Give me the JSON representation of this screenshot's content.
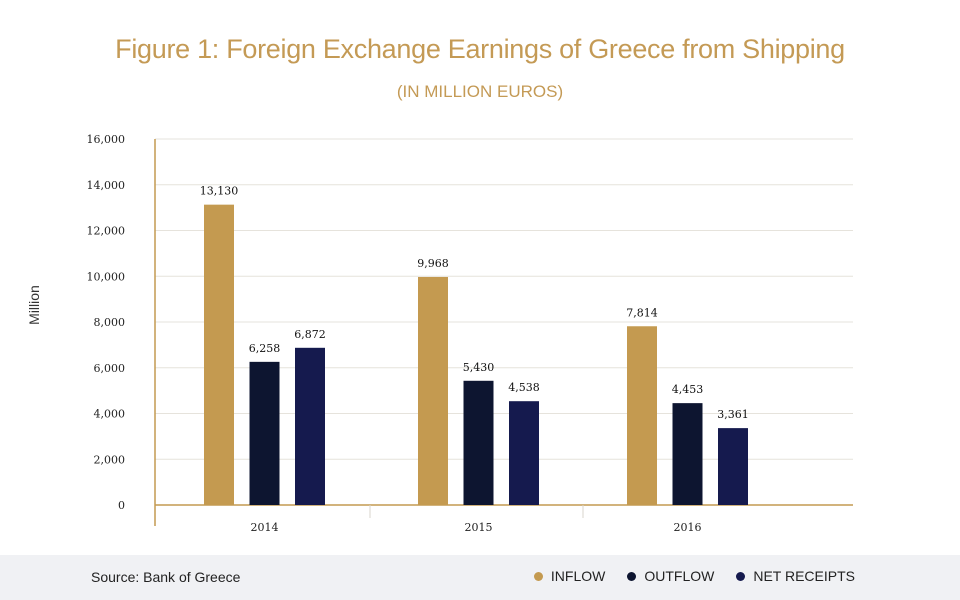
{
  "chart_data": {
    "type": "bar",
    "title": "Figure 1: Foreign Exchange Earnings of Greece from Shipping",
    "subtitle": "(IN MILLION EUROS)",
    "ylabel": "Million",
    "xlabel": "",
    "categories": [
      "2014",
      "2015",
      "2016"
    ],
    "ylim": [
      0,
      16000
    ],
    "yticks": [
      0,
      2000,
      4000,
      6000,
      8000,
      10000,
      12000,
      14000,
      16000
    ],
    "ytick_labels": [
      "0",
      "2,000",
      "4,000",
      "6,000",
      "8,000",
      "10,000",
      "12,000",
      "14,000",
      "16,000"
    ],
    "grid": true,
    "legend_position": "bottom-right",
    "series": [
      {
        "name": "INFLOW",
        "color": "#c49a50",
        "values": [
          13130,
          9968,
          7814
        ],
        "labels": [
          "13,130",
          "9,968",
          "7,814"
        ]
      },
      {
        "name": "OUTFLOW",
        "color": "#0d1530",
        "values": [
          6258,
          5430,
          4453
        ],
        "labels": [
          "6,258",
          "5,430",
          "4,453"
        ]
      },
      {
        "name": "NET RECEIPTS",
        "color": "#151a4e",
        "values": [
          6872,
          4538,
          3361
        ],
        "labels": [
          "6,872",
          "4,538",
          "3,361"
        ]
      }
    ]
  },
  "footer": {
    "source": "Source: Bank of Greece"
  }
}
